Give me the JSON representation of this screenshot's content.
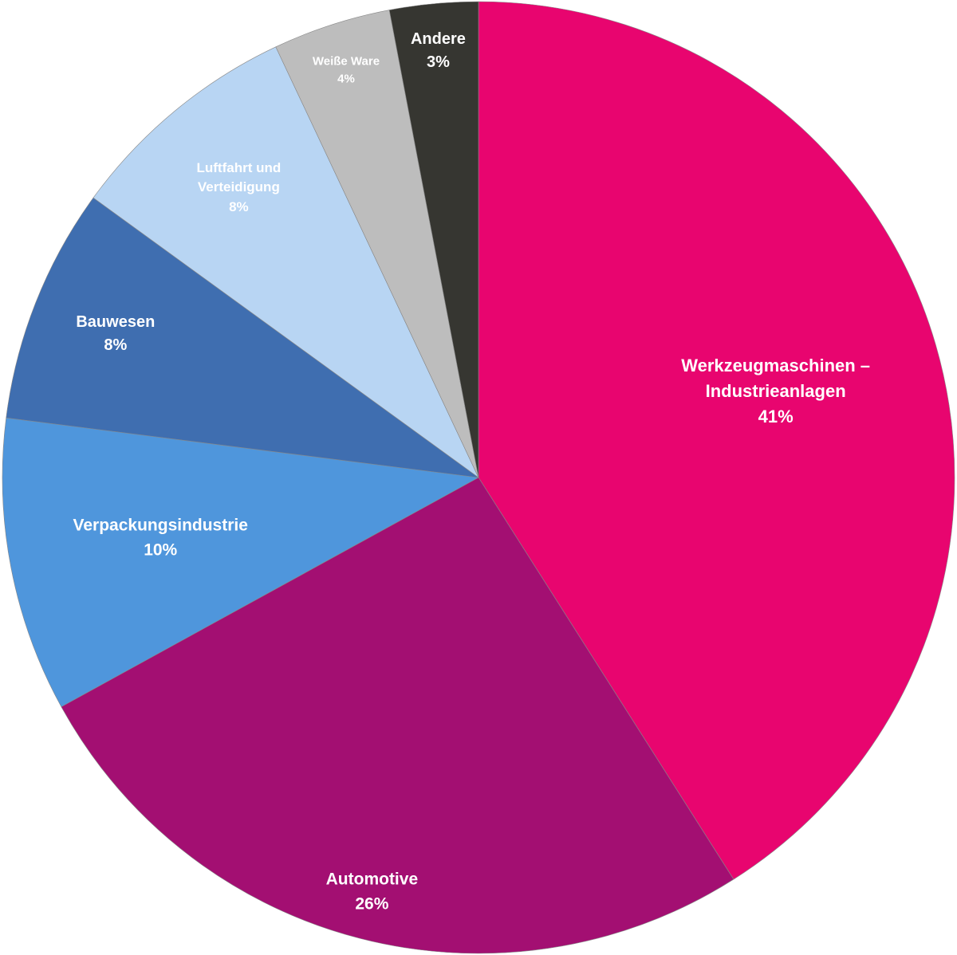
{
  "chart_data": {
    "type": "pie",
    "categories": [
      "Werkzeugmaschinen – Industrieanlagen",
      "Automotive",
      "Verpackungsindustrie",
      "Bauwesen",
      "Luftfahrt und Verteidigung",
      "Weiße Ware",
      "Andere"
    ],
    "values": [
      41,
      26,
      10,
      8,
      8,
      4,
      3
    ],
    "value_labels": [
      "41%",
      "26%",
      "10%",
      "8%",
      "8%",
      "4%",
      "3%"
    ],
    "colors": [
      "#e8056f",
      "#a30f72",
      "#4f96dc",
      "#3f6eb0",
      "#b8d5f3",
      "#bdbdbd",
      "#363631"
    ]
  }
}
